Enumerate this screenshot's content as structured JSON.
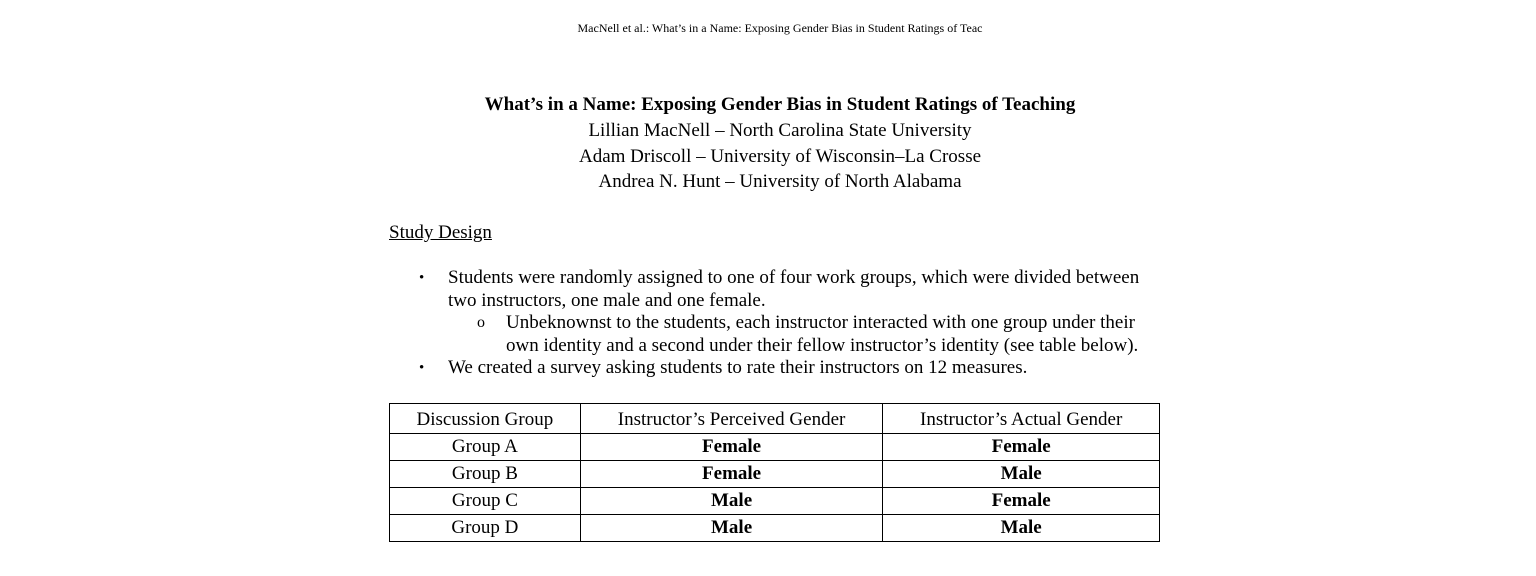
{
  "running_head": "MacNell et al.: What’s in a Name: Exposing Gender Bias in Student Ratings of Teac",
  "title": "What’s in a Name: Exposing Gender Bias in Student Ratings of Teaching",
  "authors": [
    "Lillian MacNell – North Carolina State University",
    "Adam Driscoll – University of Wisconsin–La Crosse",
    "Andrea N. Hunt – University of North Alabama"
  ],
  "section_heading": "Study Design",
  "bullets": [
    {
      "marker": "•",
      "lines": [
        "Students were randomly assigned to one of four work groups, which were divided between",
        "two instructors, one male and one female."
      ],
      "sub": {
        "marker": "o",
        "lines": [
          "Unbeknownst to the students, each instructor interacted with one group under their",
          "own identity and a second under their fellow instructor’s identity (see table below)."
        ]
      }
    },
    {
      "marker": "•",
      "lines": [
        "We created a survey asking students to rate their instructors on 12 measures."
      ]
    }
  ],
  "table": {
    "headers": [
      "Discussion Group",
      "Instructor’s Perceived Gender",
      "Instructor’s Actual Gender"
    ],
    "rows": [
      [
        "Group A",
        "Female",
        "Female"
      ],
      [
        "Group B",
        "Female",
        "Male"
      ],
      [
        "Group C",
        "Male",
        "Female"
      ],
      [
        "Group D",
        "Male",
        "Male"
      ]
    ]
  }
}
